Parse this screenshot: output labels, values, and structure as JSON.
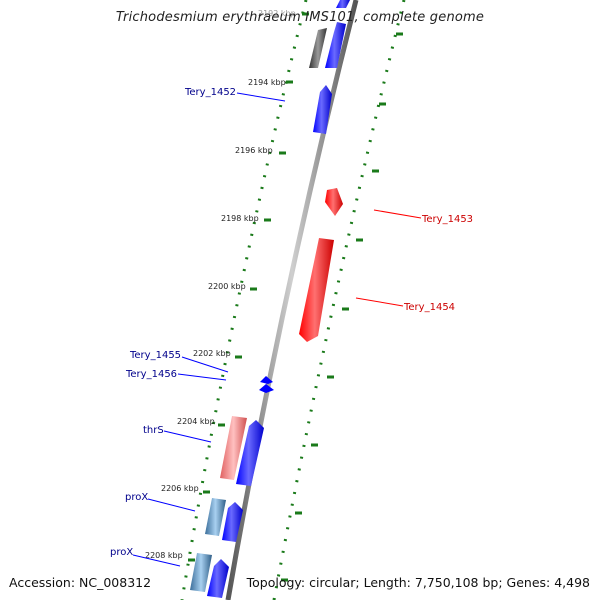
{
  "title": "Trichodesmium erythraeum IMS101, complete genome",
  "footer": {
    "accession": "Accession: NC_008312",
    "topology": "Topology: circular; Length: 7,750,108 bp; Genes: 4,498"
  },
  "colors": {
    "forward": "#0000ff",
    "reverse": "#ff0000",
    "rna_pink": "#f08080",
    "trna_blue": "#4682b4",
    "gray_gene": "#555555",
    "tick": "#1a7a1a",
    "backbone": "#808080",
    "label_blue": "#00008b",
    "label_red": "#cc0000"
  },
  "ruler": {
    "ticks": [
      {
        "label": "2192 kbp"
      },
      {
        "label": "2194 kbp"
      },
      {
        "label": "2196 kbp"
      },
      {
        "label": "2198 kbp"
      },
      {
        "label": "2200 kbp"
      },
      {
        "label": "2202 kbp"
      },
      {
        "label": "2204 kbp"
      },
      {
        "label": "2206 kbp"
      },
      {
        "label": "2208 kbp"
      }
    ]
  },
  "gene_labels": [
    {
      "text": "Tery_1452",
      "strand": "forward"
    },
    {
      "text": "Tery_1453",
      "strand": "reverse"
    },
    {
      "text": "Tery_1454",
      "strand": "reverse"
    },
    {
      "text": "Tery_1455",
      "strand": "forward"
    },
    {
      "text": "Tery_1456",
      "strand": "forward"
    },
    {
      "text": "thrS",
      "strand": "forward"
    },
    {
      "text": "proX",
      "strand": "forward"
    },
    {
      "text": "proX",
      "strand": "forward"
    }
  ]
}
